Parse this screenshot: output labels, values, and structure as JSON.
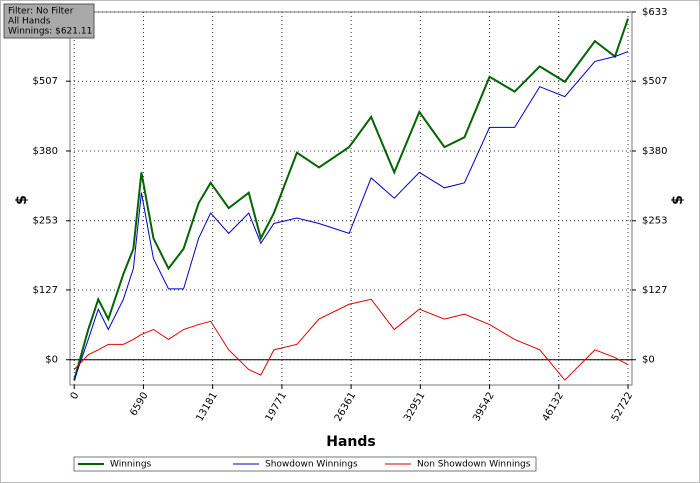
{
  "chart_data": {
    "type": "line",
    "annotations": [
      "Filter: No Filter",
      "All Hands",
      "Winnings: $621.11"
    ],
    "x_label": "Hands",
    "y_label": "$",
    "y2_label": "$",
    "x": [
      0,
      1337,
      2292,
      3247,
      4680,
      5635,
      6399,
      7545,
      8978,
      10411,
      11843,
      12989,
      14709,
      16619,
      17765,
      19008,
      21203,
      23304,
      26170,
      28271,
      30468,
      32855,
      35243,
      37153,
      39541,
      41929,
      44317,
      46704,
      49570,
      51480,
      52722
    ],
    "series": [
      {
        "name": "Winnings",
        "color": "#006400",
        "values": [
          -37,
          55,
          110,
          74,
          156,
          202,
          341,
          221,
          166,
          202,
          285,
          322,
          276,
          304,
          221,
          267,
          377,
          350,
          387,
          442,
          341,
          451,
          387,
          405,
          515,
          488,
          534,
          506,
          580,
          552,
          621
        ]
      },
      {
        "name": "Showdown Winnings",
        "color": "#0000c0",
        "values": [
          -37,
          37,
          92,
          55,
          110,
          166,
          304,
          184,
          129,
          129,
          221,
          267,
          230,
          267,
          212,
          248,
          258,
          248,
          230,
          331,
          294,
          341,
          313,
          322,
          423,
          423,
          497,
          479,
          543,
          552,
          561
        ]
      },
      {
        "name": "Non Showdown Winnings",
        "color": "#e00000",
        "values": [
          -18,
          9,
          18,
          28,
          28,
          37,
          46,
          55,
          37,
          55,
          64,
          70,
          18,
          -18,
          -28,
          18,
          28,
          74,
          101,
          110,
          55,
          92,
          74,
          83,
          64,
          37,
          18,
          -37,
          18,
          4,
          -9
        ]
      }
    ],
    "xlim": [
      -400,
      53100
    ],
    "xticks": [
      0,
      6590,
      13181,
      19771,
      26361,
      32951,
      39542,
      46132,
      52722
    ],
    "ylim": [
      -46,
      633
    ],
    "yticks": [
      {
        "value": 0,
        "label": "$0"
      },
      {
        "value": 127,
        "label": "$127"
      },
      {
        "value": 253,
        "label": "$253"
      },
      {
        "value": 380,
        "label": "$380"
      },
      {
        "value": 507,
        "label": "$507"
      },
      {
        "value": 633,
        "label": "$633"
      }
    ],
    "y2lim": [
      -46,
      633
    ],
    "y2ticks": [
      {
        "value": 0,
        "label": "$0"
      },
      {
        "value": 127,
        "label": "$127"
      },
      {
        "value": 253,
        "label": "$253"
      },
      {
        "value": 380,
        "label": "$380"
      },
      {
        "value": 507,
        "label": "$507"
      },
      {
        "value": 633,
        "label": "$633"
      }
    ],
    "grid": true,
    "legend": "bottom"
  }
}
